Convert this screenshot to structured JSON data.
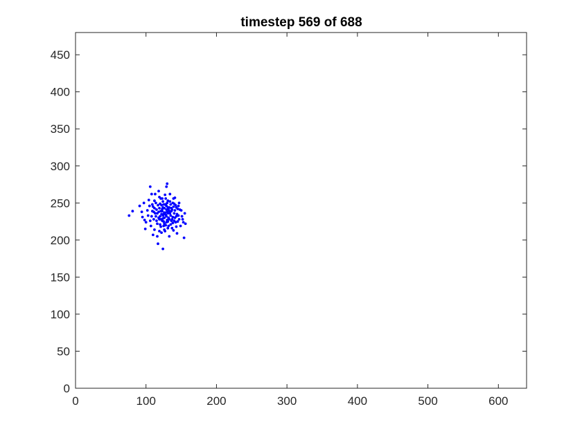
{
  "chart_data": {
    "type": "scatter",
    "title": "timestep 569 of 688",
    "xlabel": "",
    "ylabel": "",
    "xlim": [
      0,
      640
    ],
    "ylim": [
      0,
      480
    ],
    "x_ticks": [
      0,
      100,
      200,
      300,
      400,
      500,
      600
    ],
    "y_ticks": [
      0,
      50,
      100,
      150,
      200,
      250,
      300,
      350,
      400,
      450
    ],
    "grid": false,
    "marker_color": "#0000ff",
    "series": [
      {
        "points": [
          [
            125,
            235
          ],
          [
            76,
            233
          ],
          [
            81,
            239
          ],
          [
            91,
            246
          ],
          [
            95,
            231
          ],
          [
            98,
            227
          ],
          [
            102,
            240
          ],
          [
            104,
            254
          ],
          [
            106,
            272
          ],
          [
            108,
            262
          ],
          [
            110,
            245
          ],
          [
            111,
            228
          ],
          [
            112,
            214
          ],
          [
            113,
            236
          ],
          [
            114,
            250
          ],
          [
            115,
            226
          ],
          [
            116,
            205
          ],
          [
            117,
            195
          ],
          [
            118,
            266
          ],
          [
            119,
            243
          ],
          [
            120,
            232
          ],
          [
            121,
            218
          ],
          [
            121,
            256
          ],
          [
            122,
            210
          ],
          [
            122,
            247
          ],
          [
            123,
            226
          ],
          [
            123,
            239
          ],
          [
            124,
            188
          ],
          [
            124,
            252
          ],
          [
            125,
            219
          ],
          [
            126,
            243
          ],
          [
            126,
            230
          ],
          [
            127,
            212
          ],
          [
            127,
            261
          ],
          [
            128,
            234
          ],
          [
            128,
            248
          ],
          [
            129,
            224
          ],
          [
            129,
            272
          ],
          [
            130,
            276
          ],
          [
            130,
            238
          ],
          [
            131,
            216
          ],
          [
            131,
            253
          ],
          [
            132,
            230
          ],
          [
            133,
            205
          ],
          [
            133,
            244
          ],
          [
            134,
            262
          ],
          [
            135,
            221
          ],
          [
            136,
            239
          ],
          [
            137,
            228
          ],
          [
            138,
            250
          ],
          [
            139,
            213
          ],
          [
            140,
            236
          ],
          [
            141,
            257
          ],
          [
            142,
            224
          ],
          [
            143,
            244
          ],
          [
            144,
            209
          ],
          [
            146,
            233
          ],
          [
            147,
            250
          ],
          [
            149,
            219
          ],
          [
            150,
            240
          ],
          [
            152,
            228
          ],
          [
            154,
            203
          ],
          [
            155,
            236
          ],
          [
            156,
            222
          ],
          [
            100,
            224
          ],
          [
            103,
            233
          ],
          [
            105,
            246
          ],
          [
            107,
            219
          ],
          [
            109,
            239
          ],
          [
            112,
            253
          ],
          [
            114,
            232
          ],
          [
            116,
            222
          ],
          [
            118,
            238
          ],
          [
            119,
            212
          ],
          [
            120,
            249
          ],
          [
            121,
            228
          ],
          [
            123,
            242
          ],
          [
            124,
            233
          ],
          [
            125,
            225
          ],
          [
            126,
            214
          ],
          [
            127,
            237
          ],
          [
            128,
            256
          ],
          [
            129,
            241
          ],
          [
            130,
            227
          ],
          [
            131,
            244
          ],
          [
            132,
            219
          ],
          [
            134,
            236
          ],
          [
            135,
            248
          ],
          [
            136,
            226
          ],
          [
            138,
            231
          ],
          [
            139,
            245
          ],
          [
            141,
            230
          ],
          [
            143,
            218
          ],
          [
            145,
            242
          ],
          [
            147,
            228
          ],
          [
            94,
            238
          ],
          [
            97,
            250
          ],
          [
            99,
            215
          ],
          [
            110,
            207
          ],
          [
            113,
            262
          ],
          [
            117,
            247
          ],
          [
            119,
            228
          ],
          [
            122,
            235
          ],
          [
            124,
            244
          ],
          [
            126,
            222
          ],
          [
            127,
            248
          ],
          [
            129,
            232
          ],
          [
            131,
            236
          ],
          [
            133,
            228
          ],
          [
            134,
            252
          ],
          [
            137,
            241
          ],
          [
            140,
            226
          ],
          [
            142,
            247
          ],
          [
            144,
            235
          ],
          [
            148,
            241
          ],
          [
            151,
            232
          ],
          [
            153,
            224
          ],
          [
            108,
            232
          ],
          [
            111,
            238
          ],
          [
            115,
            241
          ],
          [
            118,
            230
          ],
          [
            120,
            221
          ],
          [
            123,
            256
          ],
          [
            125,
            248
          ],
          [
            128,
            220
          ],
          [
            130,
            250
          ],
          [
            132,
            241
          ],
          [
            135,
            233
          ],
          [
            137,
            216
          ],
          [
            139,
            256
          ],
          [
            141,
            240
          ],
          [
            145,
            225
          ],
          [
            106,
            226
          ],
          [
            109,
            248
          ],
          [
            112,
            243
          ],
          [
            116,
            236
          ],
          [
            119,
            258
          ],
          [
            121,
            239
          ],
          [
            124,
            229
          ],
          [
            126,
            237
          ],
          [
            129,
            246
          ],
          [
            131,
            225
          ],
          [
            133,
            239
          ],
          [
            136,
            243
          ],
          [
            138,
            223
          ],
          [
            140,
            249
          ],
          [
            143,
            232
          ],
          [
            146,
            246
          ]
        ]
      }
    ]
  }
}
